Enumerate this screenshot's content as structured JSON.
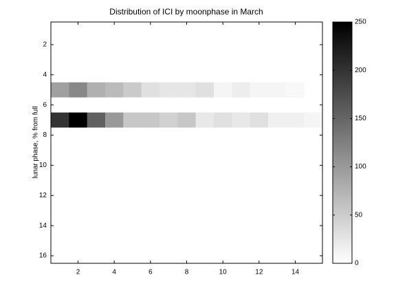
{
  "chart_data": {
    "type": "heatmap",
    "title": "Distribution of ICI by moonphase in March",
    "ylabel": "lunar phase, % from full",
    "xlim": [
      0.5,
      15.5
    ],
    "ylim": [
      16.5,
      0.5
    ],
    "xticks": [
      2,
      4,
      6,
      8,
      10,
      12,
      14
    ],
    "yticks": [
      2,
      4,
      6,
      8,
      10,
      12,
      14,
      16
    ],
    "clim": [
      0,
      250
    ],
    "cticks": [
      0,
      50,
      100,
      150,
      200,
      250
    ],
    "colormap": [
      "#ffffff",
      "#000000"
    ],
    "z": [
      [
        0,
        0,
        0,
        0,
        0,
        0,
        0,
        0,
        0,
        0,
        0,
        0,
        0,
        0,
        0
      ],
      [
        0,
        0,
        0,
        0,
        0,
        0,
        0,
        0,
        0,
        0,
        0,
        0,
        0,
        0,
        0
      ],
      [
        0,
        0,
        0,
        0,
        0,
        0,
        0,
        0,
        0,
        0,
        0,
        0,
        0,
        0,
        0
      ],
      [
        0,
        0,
        0,
        0,
        0,
        0,
        0,
        0,
        0,
        0,
        0,
        0,
        0,
        0,
        0
      ],
      [
        93,
        117,
        77,
        67,
        52,
        30,
        25,
        25,
        30,
        10,
        18,
        10,
        10,
        7,
        0
      ],
      [
        0,
        0,
        0,
        0,
        0,
        0,
        0,
        0,
        0,
        0,
        0,
        0,
        0,
        0,
        0
      ],
      [
        200,
        250,
        156,
        100,
        55,
        55,
        45,
        55,
        23,
        30,
        23,
        30,
        15,
        15,
        10
      ],
      [
        0,
        0,
        0,
        0,
        0,
        0,
        0,
        0,
        0,
        0,
        0,
        0,
        0,
        0,
        0
      ],
      [
        0,
        0,
        0,
        0,
        0,
        0,
        0,
        0,
        0,
        0,
        0,
        0,
        0,
        0,
        0
      ],
      [
        0,
        0,
        0,
        0,
        0,
        0,
        0,
        0,
        0,
        0,
        0,
        0,
        0,
        0,
        0
      ],
      [
        0,
        0,
        0,
        0,
        0,
        0,
        0,
        0,
        0,
        0,
        0,
        0,
        0,
        0,
        0
      ],
      [
        0,
        0,
        0,
        0,
        0,
        0,
        0,
        0,
        0,
        0,
        0,
        0,
        0,
        0,
        0
      ],
      [
        0,
        0,
        0,
        0,
        0,
        0,
        0,
        0,
        0,
        0,
        0,
        0,
        0,
        0,
        0
      ],
      [
        0,
        0,
        0,
        0,
        0,
        0,
        0,
        0,
        0,
        0,
        0,
        0,
        0,
        0,
        0
      ],
      [
        0,
        0,
        0,
        0,
        0,
        0,
        0,
        0,
        0,
        0,
        0,
        0,
        0,
        0,
        0
      ],
      [
        0,
        0,
        0,
        0,
        0,
        0,
        0,
        0,
        0,
        0,
        0,
        0,
        0,
        0,
        0
      ]
    ]
  }
}
